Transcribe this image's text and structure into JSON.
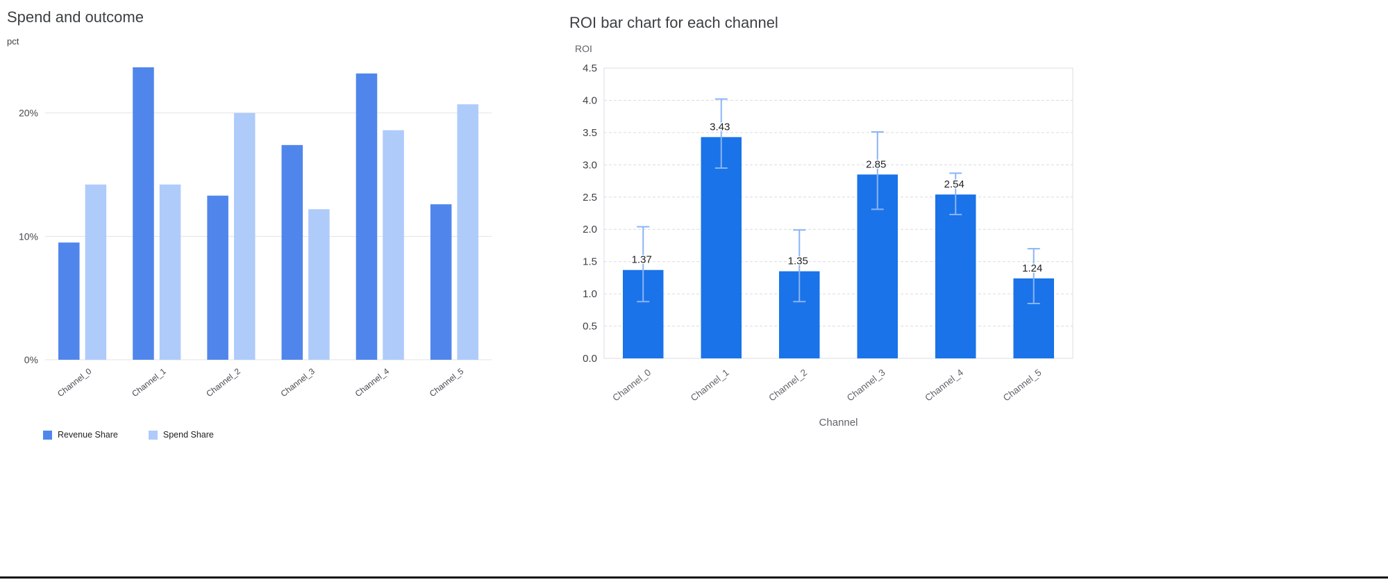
{
  "page": {
    "background": "#ffffff",
    "bottom_rule_color": "#101114"
  },
  "chart_data": [
    {
      "type": "bar",
      "title": "Spend and outcome",
      "xlabel": "",
      "ylabel": "pct",
      "categories": [
        "Channel_0",
        "Channel_1",
        "Channel_2",
        "Channel_3",
        "Channel_4",
        "Channel_5"
      ],
      "series": [
        {
          "name": "Revenue Share",
          "color": "#5086ec",
          "values": [
            9.5,
            23.7,
            13.3,
            17.4,
            23.2,
            12.6
          ]
        },
        {
          "name": "Spend Share",
          "color": "#aecbfa",
          "values": [
            14.2,
            14.2,
            20.0,
            12.2,
            18.6,
            20.7
          ]
        }
      ],
      "ylim": [
        0,
        24.2
      ],
      "yticks": [
        0,
        10,
        20
      ],
      "ytick_labels": [
        "0%",
        "10%",
        "20%"
      ],
      "grid": "solid",
      "legend_position": "bottom"
    },
    {
      "type": "bar",
      "title": "ROI bar chart for each channel",
      "xlabel": "Channel",
      "ylabel": "ROI",
      "categories": [
        "Channel_0",
        "Channel_1",
        "Channel_2",
        "Channel_3",
        "Channel_4",
        "Channel_5"
      ],
      "values": [
        1.37,
        3.43,
        1.35,
        2.85,
        2.54,
        1.24
      ],
      "value_labels": [
        "1.37",
        "3.43",
        "1.35",
        "2.85",
        "2.54",
        "1.24"
      ],
      "error_low": [
        0.88,
        2.95,
        0.88,
        2.31,
        2.23,
        0.85
      ],
      "error_high": [
        2.04,
        4.02,
        1.99,
        3.51,
        2.87,
        1.7
      ],
      "ylim": [
        0,
        4.5
      ],
      "ytick_step": 0.5,
      "bar_color": "#1a73e8",
      "error_color": "#8ab4f8",
      "grid": "dashed",
      "legend_position": "none"
    }
  ]
}
